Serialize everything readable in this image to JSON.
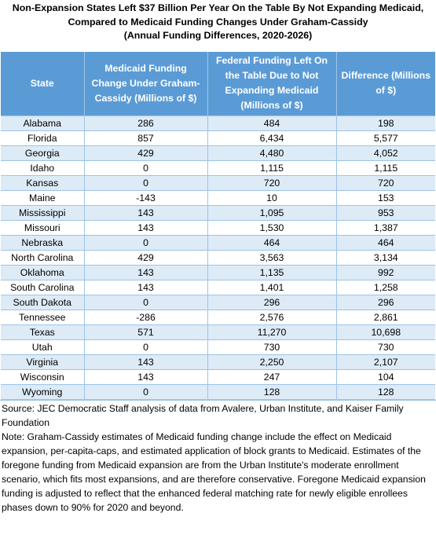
{
  "title": {
    "line1": "Non-Expansion States Left $37 Billion Per Year On the Table By Not Expanding Medicaid,",
    "line2": "Compared to Medicaid Funding Changes Under Graham-Cassidy",
    "line3": "(Annual Funding Differences, 2020-2026)"
  },
  "columns": {
    "state": "State",
    "graham_cassidy": "Medicaid Funding Change Under Graham-Cassidy (Millions of $)",
    "left_on_table": "Federal Funding Left On the Table Due to Not Expanding Medicaid (Millions of $)",
    "difference": "Difference (Millions of $)"
  },
  "rows": [
    {
      "state": "Alabama",
      "gc": "286",
      "fed": "484",
      "diff": "198"
    },
    {
      "state": "Florida",
      "gc": "857",
      "fed": "6,434",
      "diff": "5,577"
    },
    {
      "state": "Georgia",
      "gc": "429",
      "fed": "4,480",
      "diff": "4,052"
    },
    {
      "state": "Idaho",
      "gc": "0",
      "fed": "1,115",
      "diff": "1,115"
    },
    {
      "state": "Kansas",
      "gc": "0",
      "fed": "720",
      "diff": "720"
    },
    {
      "state": "Maine",
      "gc": "-143",
      "fed": "10",
      "diff": "153"
    },
    {
      "state": "Mississippi",
      "gc": "143",
      "fed": "1,095",
      "diff": "953"
    },
    {
      "state": "Missouri",
      "gc": "143",
      "fed": "1,530",
      "diff": "1,387"
    },
    {
      "state": "Nebraska",
      "gc": "0",
      "fed": "464",
      "diff": "464"
    },
    {
      "state": "North Carolina",
      "gc": "429",
      "fed": "3,563",
      "diff": "3,134"
    },
    {
      "state": "Oklahoma",
      "gc": "143",
      "fed": "1,135",
      "diff": "992"
    },
    {
      "state": "South Carolina",
      "gc": "143",
      "fed": "1,401",
      "diff": "1,258"
    },
    {
      "state": "South Dakota",
      "gc": "0",
      "fed": "296",
      "diff": "296"
    },
    {
      "state": "Tennessee",
      "gc": "-286",
      "fed": "2,576",
      "diff": "2,861"
    },
    {
      "state": "Texas",
      "gc": "571",
      "fed": "11,270",
      "diff": "10,698"
    },
    {
      "state": "Utah",
      "gc": "0",
      "fed": "730",
      "diff": "730"
    },
    {
      "state": "Virginia",
      "gc": "143",
      "fed": "2,250",
      "diff": "2,107"
    },
    {
      "state": "Wisconsin",
      "gc": "143",
      "fed": "247",
      "diff": "104"
    },
    {
      "state": "Wyoming",
      "gc": "0",
      "fed": "128",
      "diff": "128"
    }
  ],
  "source": "Source: JEC Democratic Staff analysis of data from Avalere, Urban Institute, and Kaiser Family Foundation",
  "note": "Note: Graham-Cassidy estimates of Medicaid funding change include the effect on Medicaid expansion, per-capita-caps, and estimated application of block grants to Medicaid. Estimates of the foregone funding from Medicaid expansion are from the Urban Institute's moderate enrollment scenario, which fits most expansions, and are therefore conservative. Foregone Medicaid expansion funding is adjusted to reflect that the enhanced federal matching rate for newly eligible enrollees phases down to 90% for 2020 and beyond.",
  "colors": {
    "header_bg": "#5b9bd5",
    "band_bg": "#ddebf7",
    "grid": "#9dc3e6"
  }
}
